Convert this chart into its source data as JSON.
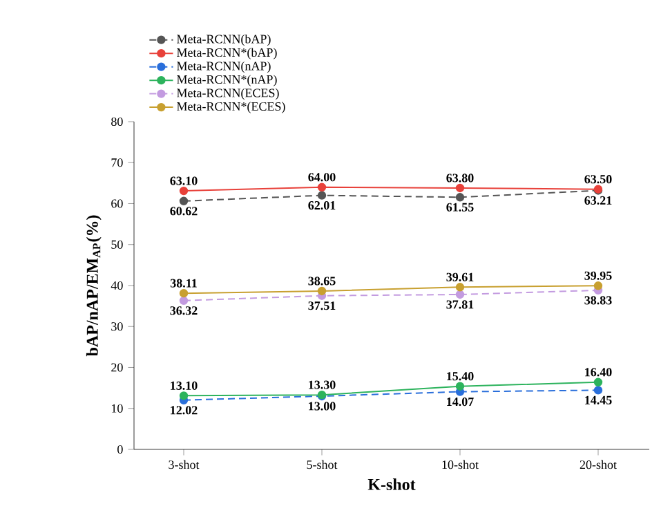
{
  "chart_data": {
    "type": "line",
    "xlabel": "K-shot",
    "ylabel": "bAP/nAP/EM$_{AP}$(%)",
    "categories": [
      "3-shot",
      "5-shot",
      "10-shot",
      "20-shot"
    ],
    "series": [
      {
        "name": "Meta-RCNN(bAP)",
        "color": "#555555",
        "line_style": "dashed",
        "values": [
          60.62,
          62.01,
          61.55,
          63.21
        ],
        "value_labels": [
          "60.62",
          "62.01",
          "61.55",
          "63.21"
        ]
      },
      {
        "name": "Meta-RCNN*(bAP)",
        "color": "#e8413a",
        "line_style": "solid",
        "values": [
          63.1,
          64.0,
          63.8,
          63.5
        ],
        "value_labels": [
          "63.10",
          "64.00",
          "63.80",
          "63.50"
        ]
      },
      {
        "name": "Meta-RCNN(nAP)",
        "color": "#2a6fdb",
        "line_style": "dashed",
        "values": [
          12.02,
          13.0,
          14.07,
          14.45
        ],
        "value_labels": [
          "12.02",
          "13.00",
          "14.07",
          "14.45"
        ]
      },
      {
        "name": "Meta-RCNN*(nAP)",
        "color": "#2db35d",
        "line_style": "solid",
        "values": [
          13.1,
          13.3,
          15.4,
          16.4
        ],
        "value_labels": [
          "13.10",
          "13.30",
          "15.40",
          "16.40"
        ]
      },
      {
        "name": "Meta-RCNN(ECES)",
        "color": "#c39be0",
        "line_style": "dashed",
        "values": [
          36.32,
          37.51,
          37.81,
          38.83
        ],
        "value_labels": [
          "36.32",
          "37.51",
          "37.81",
          "38.83"
        ]
      },
      {
        "name": "Meta-RCNN*(ECES)",
        "color": "#c8a030",
        "line_style": "solid",
        "values": [
          38.11,
          38.65,
          39.61,
          39.95
        ],
        "value_labels": [
          "38.11",
          "38.65",
          "39.61",
          "39.95"
        ]
      }
    ],
    "ylim": [
      0,
      80
    ],
    "yticks": [
      0,
      10,
      20,
      30,
      40,
      50,
      60,
      70,
      80
    ],
    "marker": "circle",
    "legend": "top left",
    "grid": false
  }
}
